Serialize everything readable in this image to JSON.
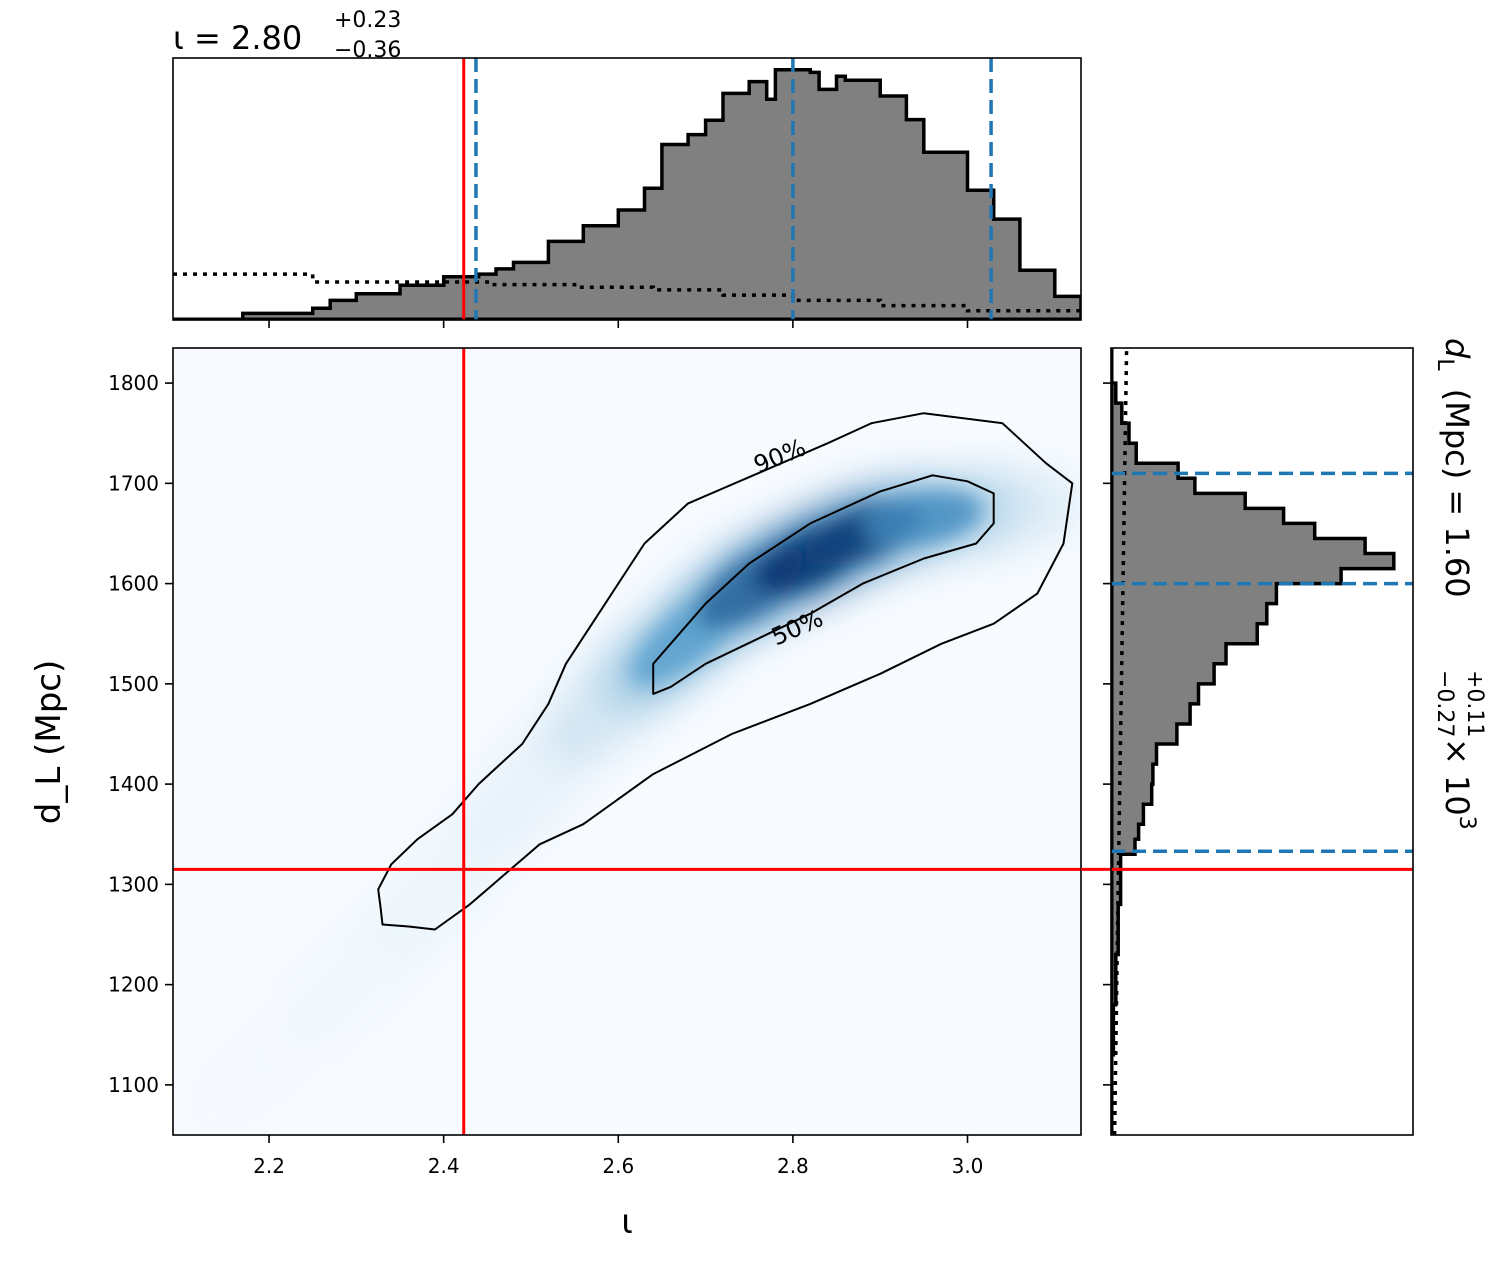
{
  "chart_data": {
    "type": "corner-plot",
    "joint": {
      "type": "heatmap",
      "x_param": "iota",
      "y_param": "d_L",
      "xlabel": "ι",
      "ylabel": "d_L (Mpc)",
      "xlim": [
        2.09,
        3.13
      ],
      "ylim": [
        1050,
        1835
      ],
      "xticks": [
        "2.2",
        "2.4",
        "2.6",
        "2.8",
        "3.0"
      ],
      "xtick_values": [
        2.2,
        2.4,
        2.6,
        2.8,
        3.0
      ],
      "yticks": [
        "1100",
        "1200",
        "1300",
        "1400",
        "1500",
        "1600",
        "1700",
        "1800"
      ],
      "ytick_values": [
        1100,
        1200,
        1300,
        1400,
        1500,
        1600,
        1700,
        1800
      ],
      "colormap": "Blues",
      "density_ridge": [
        {
          "x": 2.19,
          "y": 1120,
          "w": 0.02
        },
        {
          "x": 2.3,
          "y": 1210,
          "w": 0.04
        },
        {
          "x": 2.4,
          "y": 1300,
          "w": 0.06
        },
        {
          "x": 2.5,
          "y": 1400,
          "w": 0.1
        },
        {
          "x": 2.6,
          "y": 1490,
          "w": 0.22
        },
        {
          "x": 2.67,
          "y": 1540,
          "w": 0.45
        },
        {
          "x": 2.75,
          "y": 1595,
          "w": 0.75
        },
        {
          "x": 2.82,
          "y": 1625,
          "w": 1.0
        },
        {
          "x": 2.88,
          "y": 1650,
          "w": 0.9
        },
        {
          "x": 2.95,
          "y": 1665,
          "w": 0.55
        },
        {
          "x": 3.02,
          "y": 1672,
          "w": 0.2
        }
      ],
      "contours": [
        {
          "level": "90%",
          "label": "90%",
          "label_at": {
            "x": 2.785,
            "y": 1727
          },
          "label_angle": -22,
          "points": [
            [
              2.33,
              1260
            ],
            [
              2.328,
              1275
            ],
            [
              2.325,
              1295
            ],
            [
              2.34,
              1320
            ],
            [
              2.37,
              1345
            ],
            [
              2.41,
              1370
            ],
            [
              2.44,
              1400
            ],
            [
              2.49,
              1440
            ],
            [
              2.52,
              1480
            ],
            [
              2.54,
              1520
            ],
            [
              2.57,
              1560
            ],
            [
              2.6,
              1600
            ],
            [
              2.63,
              1640
            ],
            [
              2.68,
              1680
            ],
            [
              2.76,
              1710
            ],
            [
              2.84,
              1740
            ],
            [
              2.89,
              1760
            ],
            [
              2.95,
              1770
            ],
            [
              3.04,
              1760
            ],
            [
              3.09,
              1720
            ],
            [
              3.12,
              1700
            ],
            [
              3.11,
              1640
            ],
            [
              3.08,
              1590
            ],
            [
              3.03,
              1560
            ],
            [
              2.97,
              1540
            ],
            [
              2.9,
              1510
            ],
            [
              2.82,
              1480
            ],
            [
              2.73,
              1450
            ],
            [
              2.64,
              1410
            ],
            [
              2.56,
              1360
            ],
            [
              2.51,
              1340
            ],
            [
              2.47,
              1310
            ],
            [
              2.43,
              1280
            ],
            [
              2.39,
              1255
            ],
            [
              2.36,
              1258
            ],
            [
              2.33,
              1260
            ]
          ]
        },
        {
          "level": "50%",
          "label": "50%",
          "label_at": {
            "x": 2.805,
            "y": 1556
          },
          "label_angle": -24,
          "points": [
            [
              2.64,
              1490
            ],
            [
              2.64,
              1520
            ],
            [
              2.67,
              1550
            ],
            [
              2.7,
              1580
            ],
            [
              2.75,
              1620
            ],
            [
              2.82,
              1660
            ],
            [
              2.9,
              1692
            ],
            [
              2.96,
              1708
            ],
            [
              3.0,
              1702
            ],
            [
              3.03,
              1690
            ],
            [
              3.03,
              1660
            ],
            [
              3.01,
              1640
            ],
            [
              2.95,
              1625
            ],
            [
              2.88,
              1600
            ],
            [
              2.82,
              1570
            ],
            [
              2.76,
              1545
            ],
            [
              2.7,
              1520
            ],
            [
              2.66,
              1497
            ],
            [
              2.64,
              1490
            ]
          ]
        }
      ],
      "truth": {
        "x": 2.423,
        "y": 1315
      }
    },
    "marginal_x": {
      "param": "iota",
      "title": "ι = 2.80^{+0.23}_{-0.36}",
      "title_main": "ι = 2.80",
      "title_sup": "+0.23",
      "title_sub": "−0.36",
      "xlim": [
        2.09,
        3.13
      ],
      "bin_edges": [
        2.17,
        2.25,
        2.27,
        2.3,
        2.35,
        2.4,
        2.44,
        2.46,
        2.48,
        2.52,
        2.56,
        2.6,
        2.63,
        2.65,
        2.68,
        2.7,
        2.72,
        2.75,
        2.77,
        2.78,
        2.82,
        2.83,
        2.85,
        2.86,
        2.9,
        2.93,
        2.95,
        3.0,
        3.03,
        3.06,
        3.1,
        3.13
      ],
      "counts": [
        1.0,
        1.8,
        3.0,
        4.0,
        5.3,
        6.6,
        7.0,
        7.8,
        8.8,
        12.0,
        14.4,
        16.8,
        20.1,
        26.8,
        28.3,
        30.5,
        34.6,
        36.4,
        33.7,
        38.2,
        37.8,
        35.2,
        37.2,
        36.6,
        34.2,
        30.6,
        25.6,
        19.8,
        15.4,
        7.6,
        3.6
      ],
      "prior_edges": [
        2.09,
        2.25,
        2.45,
        2.55,
        2.64,
        2.72,
        2.8,
        2.9,
        3.0,
        3.13
      ],
      "prior_counts": [
        7.0,
        5.8,
        5.4,
        5.0,
        4.6,
        3.8,
        3.0,
        2.2,
        1.4
      ],
      "ymax": 40,
      "quantiles": [
        2.437,
        2.8,
        3.027
      ],
      "truth": 2.423
    },
    "marginal_y": {
      "param": "d_L",
      "label": "d_L (Mpc) = 1.60^{+0.11}_{-0.27} × 10^3",
      "label_main": "(Mpc) = 1.60",
      "label_sup": "+0.11",
      "label_sub": "−0.27",
      "label_times": "× 10",
      "label_exp": "3",
      "ylim": [
        1050,
        1835
      ],
      "bin_edges": [
        1130,
        1180,
        1230,
        1280,
        1330,
        1345,
        1360,
        1380,
        1400,
        1420,
        1440,
        1460,
        1480,
        1500,
        1520,
        1540,
        1560,
        1580,
        1600,
        1615,
        1630,
        1645,
        1660,
        1675,
        1690,
        1705,
        1720,
        1740,
        1760,
        1780,
        1800
      ],
      "counts": [
        1.0,
        2.0,
        3.0,
        4.0,
        10.0,
        11.5,
        13.5,
        17.0,
        17.5,
        19.0,
        27.5,
        33.0,
        36.5,
        43.0,
        48.0,
        61.0,
        65.0,
        69.0,
        96.0,
        118.0,
        106.0,
        85.0,
        72.0,
        56.0,
        35.0,
        28.0,
        10.5,
        7.5,
        4.5,
        2.0
      ],
      "xmax": 126,
      "prior_points": [
        [
          1.5,
          1050
        ],
        [
          3.0,
          1300
        ],
        [
          5.0,
          1600
        ],
        [
          6.5,
          1835
        ]
      ],
      "quantiles": [
        1333,
        1600,
        1710
      ],
      "truth": 1315
    },
    "colors": {
      "hist_fill": "#808080",
      "hist_edge": "#000000",
      "quantile_line": "#1f77b4",
      "truth_line": "#ff0000",
      "contour": "#000000",
      "heatmap_low": "#f7fbff",
      "heatmap_high": "#08306b"
    },
    "grid": false,
    "legend": "none"
  }
}
